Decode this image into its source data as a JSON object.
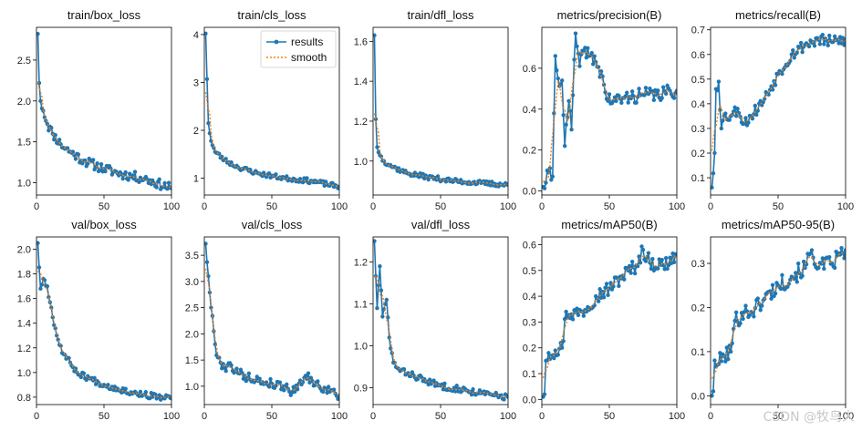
{
  "legend": {
    "results": "results",
    "smooth": "smooth"
  },
  "watermark": "CSDN @牧鸟人",
  "colors": {
    "results": "#1f77b4",
    "smooth": "#ff7f0e"
  },
  "chart_data": [
    {
      "type": "line",
      "title": "train/box_loss",
      "xlim": [
        0,
        100
      ],
      "ylim": [
        0.85,
        2.9
      ],
      "xticks": [
        0,
        50,
        100
      ],
      "yticks": [
        1.0,
        1.5,
        2.0,
        2.5
      ],
      "ytick_labels": [
        "1.0",
        "1.5",
        "2.0",
        "2.5"
      ],
      "legend": false,
      "anchors": [
        [
          1,
          2.82
        ],
        [
          2,
          2.22
        ],
        [
          3,
          2.0
        ],
        [
          5,
          1.88
        ],
        [
          8,
          1.72
        ],
        [
          12,
          1.6
        ],
        [
          18,
          1.47
        ],
        [
          25,
          1.38
        ],
        [
          35,
          1.27
        ],
        [
          50,
          1.17
        ],
        [
          65,
          1.1
        ],
        [
          80,
          1.05
        ],
        [
          100,
          0.93
        ]
      ],
      "noise": 0.06,
      "seed": 11
    },
    {
      "type": "line",
      "title": "train/cls_loss",
      "xlim": [
        0,
        100
      ],
      "ylim": [
        0.65,
        4.15
      ],
      "xticks": [
        0,
        50,
        100
      ],
      "yticks": [
        1,
        2,
        3,
        4
      ],
      "ytick_labels": [
        "1",
        "2",
        "3",
        "4"
      ],
      "legend": true,
      "anchors": [
        [
          1,
          4.02
        ],
        [
          2,
          3.07
        ],
        [
          3,
          2.15
        ],
        [
          5,
          1.78
        ],
        [
          8,
          1.55
        ],
        [
          15,
          1.38
        ],
        [
          25,
          1.23
        ],
        [
          40,
          1.1
        ],
        [
          60,
          1.0
        ],
        [
          80,
          0.94
        ],
        [
          100,
          0.82
        ]
      ],
      "noise": 0.05,
      "seed": 23
    },
    {
      "type": "line",
      "title": "train/dfl_loss",
      "xlim": [
        0,
        100
      ],
      "ylim": [
        0.83,
        1.67
      ],
      "xticks": [
        0,
        50,
        100
      ],
      "yticks": [
        1.0,
        1.2,
        1.4,
        1.6
      ],
      "ytick_labels": [
        "1.0",
        "1.2",
        "1.4",
        "1.6"
      ],
      "legend": false,
      "anchors": [
        [
          1,
          1.63
        ],
        [
          2,
          1.21
        ],
        [
          3,
          1.07
        ],
        [
          5,
          1.03
        ],
        [
          8,
          1.0
        ],
        [
          15,
          0.97
        ],
        [
          25,
          0.94
        ],
        [
          40,
          0.92
        ],
        [
          60,
          0.9
        ],
        [
          80,
          0.89
        ],
        [
          100,
          0.88
        ]
      ],
      "noise": 0.012,
      "seed": 37
    },
    {
      "type": "line",
      "title": "metrics/precision(B)",
      "xlim": [
        0,
        100
      ],
      "ylim": [
        -0.02,
        0.8
      ],
      "xticks": [
        0,
        50,
        100
      ],
      "yticks": [
        0.0,
        0.2,
        0.4,
        0.6
      ],
      "ytick_labels": [
        "0.0",
        "0.2",
        "0.4",
        "0.6"
      ],
      "legend": false,
      "anchors": [
        [
          1,
          0.02
        ],
        [
          3,
          0.04
        ],
        [
          5,
          0.09
        ],
        [
          8,
          0.07
        ],
        [
          10,
          0.66
        ],
        [
          12,
          0.55
        ],
        [
          15,
          0.54
        ],
        [
          17,
          0.22
        ],
        [
          20,
          0.44
        ],
        [
          22,
          0.3
        ],
        [
          25,
          0.77
        ],
        [
          28,
          0.61
        ],
        [
          32,
          0.7
        ],
        [
          35,
          0.66
        ],
        [
          40,
          0.63
        ],
        [
          45,
          0.56
        ],
        [
          48,
          0.45
        ],
        [
          55,
          0.44
        ],
        [
          65,
          0.46
        ],
        [
          75,
          0.47
        ],
        [
          85,
          0.47
        ],
        [
          100,
          0.49
        ]
      ],
      "noise": 0.035,
      "seed": 41
    },
    {
      "type": "line",
      "title": "metrics/recall(B)",
      "xlim": [
        0,
        100
      ],
      "ylim": [
        0.03,
        0.71
      ],
      "xticks": [
        0,
        50,
        100
      ],
      "yticks": [
        0.1,
        0.2,
        0.3,
        0.4,
        0.5,
        0.6,
        0.7
      ],
      "ytick_labels": [
        "0.1",
        "0.2",
        "0.3",
        "0.4",
        "0.5",
        "0.6",
        "0.7"
      ],
      "legend": false,
      "anchors": [
        [
          1,
          0.06
        ],
        [
          3,
          0.2
        ],
        [
          4,
          0.46
        ],
        [
          6,
          0.49
        ],
        [
          8,
          0.3
        ],
        [
          10,
          0.35
        ],
        [
          15,
          0.35
        ],
        [
          20,
          0.38
        ],
        [
          25,
          0.32
        ],
        [
          30,
          0.35
        ],
        [
          40,
          0.42
        ],
        [
          50,
          0.52
        ],
        [
          60,
          0.6
        ],
        [
          70,
          0.64
        ],
        [
          80,
          0.66
        ],
        [
          90,
          0.65
        ],
        [
          100,
          0.66
        ]
      ],
      "noise": 0.025,
      "seed": 53
    },
    {
      "type": "line",
      "title": "val/box_loss",
      "xlim": [
        0,
        100
      ],
      "ylim": [
        0.74,
        2.1
      ],
      "xticks": [
        0,
        50,
        100
      ],
      "yticks": [
        0.8,
        1.0,
        1.2,
        1.4,
        1.6,
        1.8,
        2.0
      ],
      "ytick_labels": [
        "0.8",
        "1.0",
        "1.2",
        "1.4",
        "1.6",
        "1.8",
        "2.0"
      ],
      "legend": false,
      "anchors": [
        [
          1,
          2.05
        ],
        [
          3,
          1.68
        ],
        [
          5,
          1.76
        ],
        [
          8,
          1.7
        ],
        [
          10,
          1.57
        ],
        [
          15,
          1.3
        ],
        [
          20,
          1.15
        ],
        [
          25,
          1.08
        ],
        [
          30,
          1.0
        ],
        [
          40,
          0.95
        ],
        [
          50,
          0.9
        ],
        [
          60,
          0.87
        ],
        [
          70,
          0.84
        ],
        [
          80,
          0.82
        ],
        [
          90,
          0.8
        ],
        [
          100,
          0.79
        ]
      ],
      "noise": 0.025,
      "seed": 67
    },
    {
      "type": "line",
      "title": "val/cls_loss",
      "xlim": [
        0,
        100
      ],
      "ylim": [
        0.65,
        3.85
      ],
      "xticks": [
        0,
        50,
        100
      ],
      "yticks": [
        1.0,
        1.5,
        2.0,
        2.5,
        3.0,
        3.5
      ],
      "ytick_labels": [
        "1.0",
        "1.5",
        "2.0",
        "2.5",
        "3.0",
        "3.5"
      ],
      "legend": false,
      "anchors": [
        [
          1,
          3.72
        ],
        [
          3,
          3.1
        ],
        [
          5,
          2.5
        ],
        [
          8,
          1.8
        ],
        [
          10,
          1.55
        ],
        [
          15,
          1.35
        ],
        [
          20,
          1.4
        ],
        [
          25,
          1.25
        ],
        [
          30,
          1.2
        ],
        [
          40,
          1.1
        ],
        [
          50,
          1.05
        ],
        [
          60,
          1.0
        ],
        [
          65,
          0.88
        ],
        [
          70,
          1.05
        ],
        [
          75,
          1.2
        ],
        [
          80,
          1.1
        ],
        [
          85,
          1.0
        ],
        [
          90,
          0.95
        ],
        [
          100,
          0.82
        ]
      ],
      "noise": 0.09,
      "seed": 79
    },
    {
      "type": "line",
      "title": "val/dfl_loss",
      "xlim": [
        0,
        100
      ],
      "ylim": [
        0.86,
        1.26
      ],
      "xticks": [
        0,
        50,
        100
      ],
      "yticks": [
        0.9,
        1.0,
        1.1,
        1.2
      ],
      "ytick_labels": [
        "0.9",
        "1.0",
        "1.1",
        "1.2"
      ],
      "legend": false,
      "anchors": [
        [
          1,
          1.25
        ],
        [
          3,
          1.09
        ],
        [
          5,
          1.19
        ],
        [
          7,
          1.07
        ],
        [
          10,
          1.11
        ],
        [
          12,
          1.02
        ],
        [
          15,
          0.96
        ],
        [
          20,
          0.94
        ],
        [
          30,
          0.93
        ],
        [
          40,
          0.915
        ],
        [
          50,
          0.905
        ],
        [
          60,
          0.9
        ],
        [
          70,
          0.893
        ],
        [
          80,
          0.887
        ],
        [
          90,
          0.882
        ],
        [
          100,
          0.878
        ]
      ],
      "noise": 0.008,
      "seed": 83
    },
    {
      "type": "line",
      "title": "metrics/mAP50(B)",
      "xlim": [
        0,
        100
      ],
      "ylim": [
        -0.02,
        0.63
      ],
      "xticks": [
        0,
        50,
        100
      ],
      "yticks": [
        0.0,
        0.1,
        0.2,
        0.3,
        0.4,
        0.5,
        0.6
      ],
      "ytick_labels": [
        "0.0",
        "0.1",
        "0.2",
        "0.3",
        "0.4",
        "0.5",
        "0.6"
      ],
      "legend": false,
      "anchors": [
        [
          1,
          0.01
        ],
        [
          2,
          0.02
        ],
        [
          3,
          0.15
        ],
        [
          5,
          0.18
        ],
        [
          10,
          0.19
        ],
        [
          15,
          0.2
        ],
        [
          18,
          0.34
        ],
        [
          22,
          0.33
        ],
        [
          30,
          0.34
        ],
        [
          40,
          0.4
        ],
        [
          50,
          0.43
        ],
        [
          60,
          0.48
        ],
        [
          70,
          0.52
        ],
        [
          75,
          0.58
        ],
        [
          80,
          0.53
        ],
        [
          90,
          0.52
        ],
        [
          100,
          0.56
        ]
      ],
      "noise": 0.03,
      "seed": 97
    },
    {
      "type": "line",
      "title": "metrics/mAP50-95(B)",
      "xlim": [
        0,
        100
      ],
      "ylim": [
        -0.02,
        0.36
      ],
      "xticks": [
        0,
        50,
        100
      ],
      "yticks": [
        0.0,
        0.1,
        0.2,
        0.3
      ],
      "ytick_labels": [
        "0.0",
        "0.1",
        "0.2",
        "0.3"
      ],
      "legend": false,
      "anchors": [
        [
          1,
          0.0
        ],
        [
          2,
          0.01
        ],
        [
          3,
          0.08
        ],
        [
          5,
          0.07
        ],
        [
          10,
          0.09
        ],
        [
          15,
          0.1
        ],
        [
          18,
          0.17
        ],
        [
          25,
          0.19
        ],
        [
          30,
          0.19
        ],
        [
          40,
          0.22
        ],
        [
          50,
          0.25
        ],
        [
          60,
          0.27
        ],
        [
          70,
          0.29
        ],
        [
          75,
          0.33
        ],
        [
          80,
          0.29
        ],
        [
          90,
          0.3
        ],
        [
          100,
          0.33
        ]
      ],
      "noise": 0.02,
      "seed": 101
    }
  ]
}
